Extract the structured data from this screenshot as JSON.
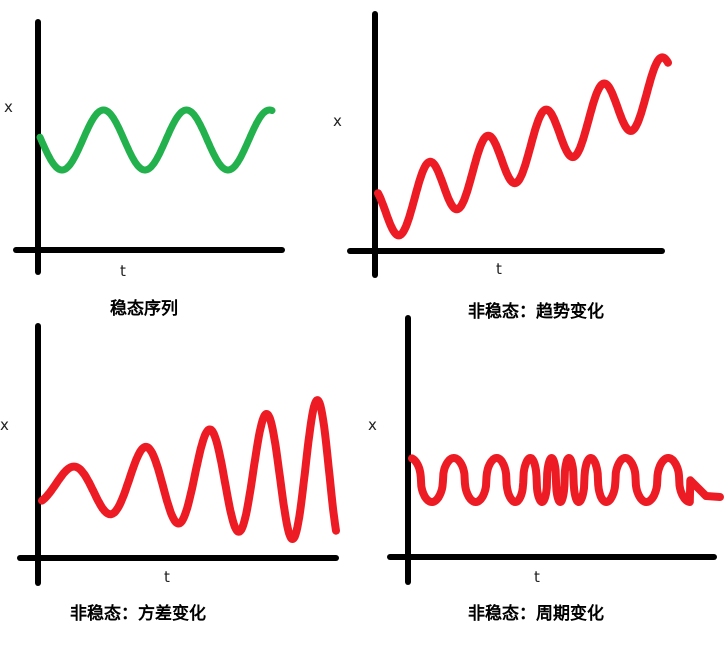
{
  "colors": {
    "axis": "#000000",
    "stationary": "#22b14c",
    "nonstationary": "#ed1c24"
  },
  "panels": [
    {
      "id": "stationary",
      "caption": "稳态序列",
      "xlabel": "t",
      "ylabel": "x",
      "color": "stationary"
    },
    {
      "id": "trend",
      "caption": "非稳态：趋势变化",
      "xlabel": "t",
      "ylabel": "x",
      "color": "nonstationary"
    },
    {
      "id": "variance",
      "caption": "非稳态：方差变化",
      "xlabel": "t",
      "ylabel": "x",
      "color": "nonstationary"
    },
    {
      "id": "periodic",
      "caption": "非稳态：周期变化",
      "xlabel": "t",
      "ylabel": "x",
      "color": "nonstationary"
    }
  ]
}
